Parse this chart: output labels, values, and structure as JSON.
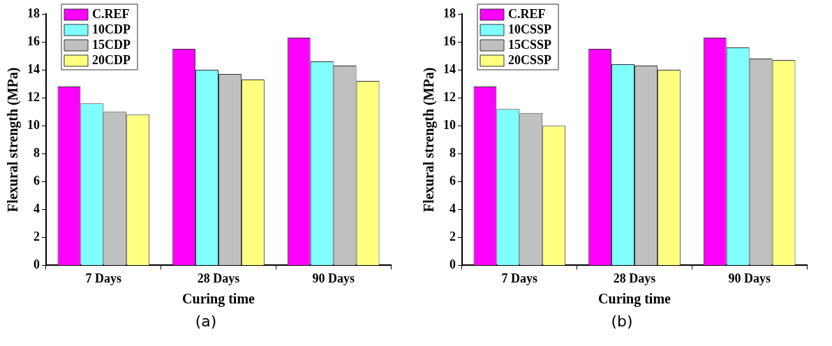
{
  "chart_data": [
    {
      "type": "bar",
      "categories": [
        "7 Days",
        "28 Days",
        "90 Days"
      ],
      "xlabel": "Curing time",
      "ylabel": "Flexural strength (MPa)",
      "ylim": [
        0,
        18
      ],
      "yticks": [
        0,
        2,
        4,
        6,
        8,
        10,
        12,
        14,
        16,
        18
      ],
      "grid": false,
      "legend": "top left",
      "annotations": [
        "(a)"
      ],
      "series": [
        {
          "name": "C.REF",
          "color": "#ff00ff",
          "values": [
            12.8,
            15.5,
            16.3
          ]
        },
        {
          "name": "10CDP",
          "color": "#80ffff",
          "values": [
            11.6,
            14.0,
            14.6
          ]
        },
        {
          "name": "15CDP",
          "color": "#c0c0c0",
          "values": [
            11.0,
            13.7,
            14.3
          ]
        },
        {
          "name": "20CDP",
          "color": "#ffff80",
          "values": [
            10.8,
            13.3,
            13.2
          ]
        }
      ]
    },
    {
      "type": "bar",
      "categories": [
        "7 Days",
        "28 Days",
        "90 Days"
      ],
      "xlabel": "Curing time",
      "ylabel": "Flexural strength (MPa)",
      "ylim": [
        0,
        18
      ],
      "yticks": [
        0,
        2,
        4,
        6,
        8,
        10,
        12,
        14,
        16,
        18
      ],
      "grid": false,
      "legend": "top left",
      "annotations": [
        "(b)"
      ],
      "series": [
        {
          "name": "C.REF",
          "color": "#ff00ff",
          "values": [
            12.8,
            15.5,
            16.3
          ]
        },
        {
          "name": "10CSSP",
          "color": "#80ffff",
          "values": [
            11.2,
            14.4,
            15.6
          ]
        },
        {
          "name": "15CSSP",
          "color": "#c0c0c0",
          "values": [
            10.9,
            14.3,
            14.8
          ]
        },
        {
          "name": "20CSSP",
          "color": "#ffff80",
          "values": [
            10.0,
            14.0,
            14.7
          ]
        }
      ]
    }
  ]
}
